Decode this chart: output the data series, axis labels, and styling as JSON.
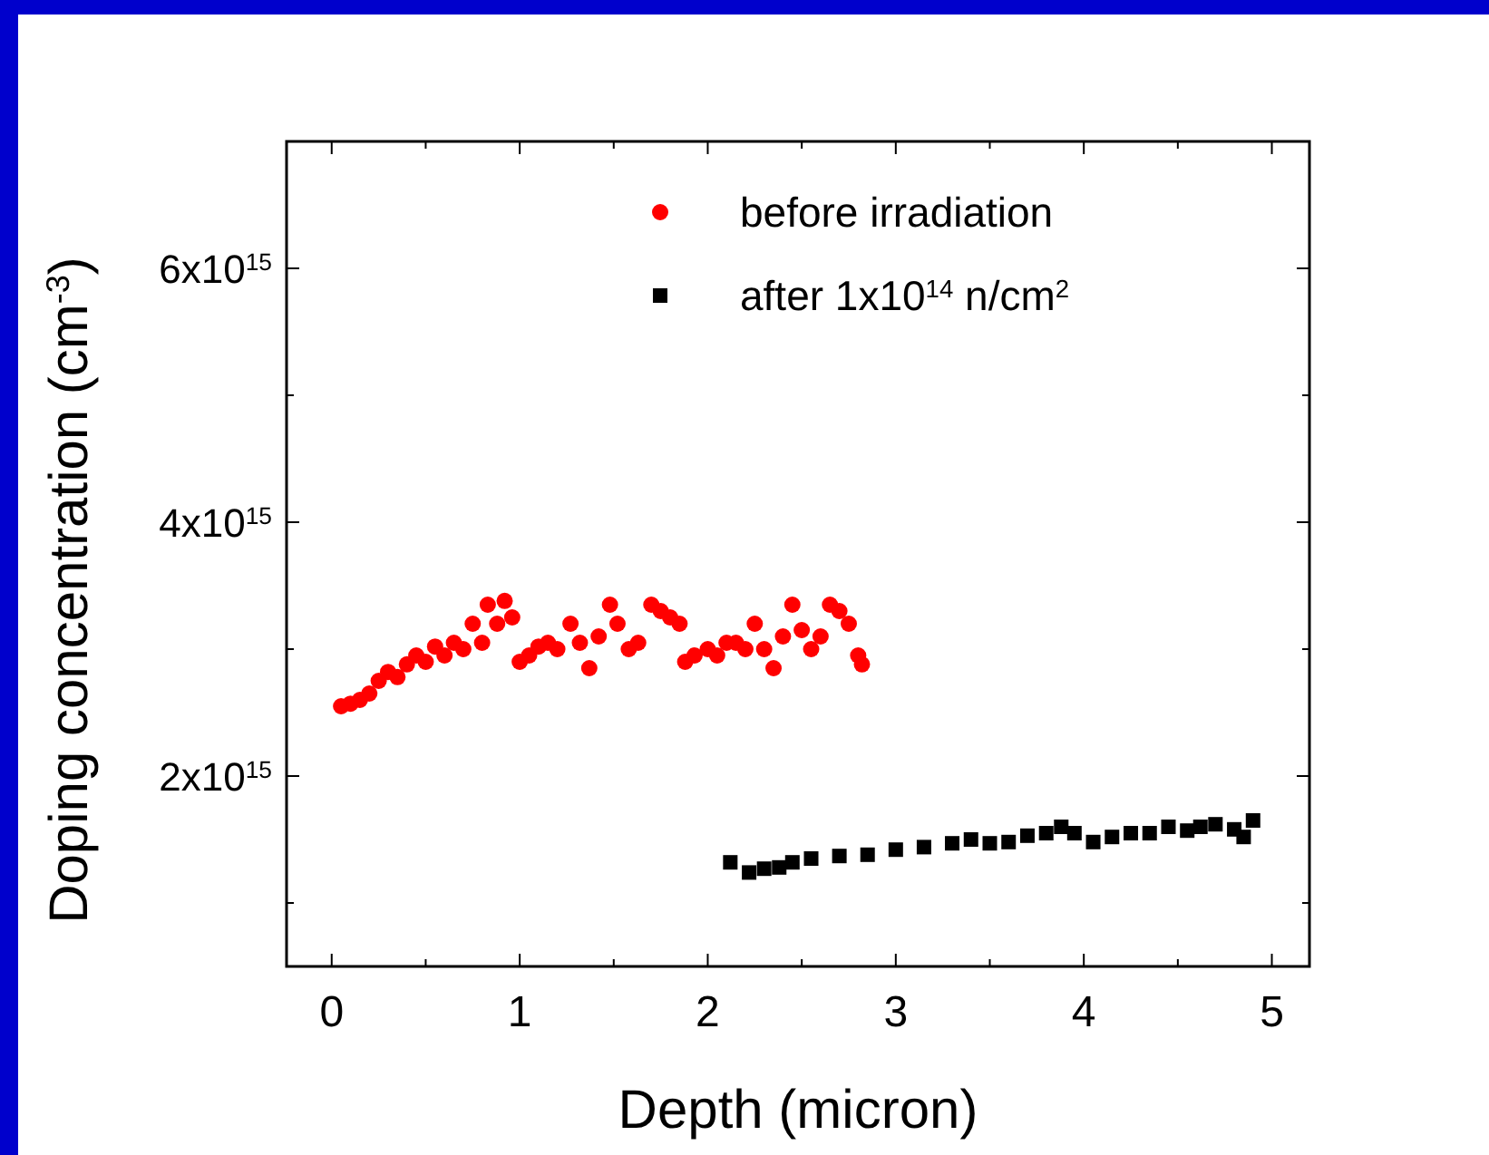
{
  "chart_data": {
    "type": "scatter",
    "xlabel": "Depth (micron)",
    "ylabel": "Doping concentration (cm$^{-3}$)",
    "xlim": [
      -0.24,
      5.2
    ],
    "xticks": [
      0,
      {
        "value": 0.5,
        "label": null
      },
      1,
      {
        "value": 1.5,
        "label": null
      },
      2,
      {
        "value": 2.5,
        "label": null
      },
      3,
      {
        "value": 3.5,
        "label": null
      },
      4,
      {
        "value": 4.5,
        "label": null
      },
      5
    ],
    "ylim": [
      500000000000000.0,
      7000000000000000.0
    ],
    "yticks": [
      {
        "value": 1000000000000000.0,
        "label": null
      },
      {
        "value": 2000000000000000.0,
        "label": "2x10$^{15}$"
      },
      {
        "value": 3000000000000000.0,
        "label": null
      },
      {
        "value": 4000000000000000.0,
        "label": "4x10$^{15}$"
      },
      {
        "value": 5000000000000000.0,
        "label": null
      },
      {
        "value": 6000000000000000.0,
        "label": "6x10$^{15}$"
      }
    ],
    "grid": false,
    "legend": "top right",
    "series": [
      {
        "name": "before irradiation",
        "color": "#ff0000",
        "marker": "circle",
        "x": [
          0.05,
          0.1,
          0.15,
          0.2,
          0.25,
          0.3,
          0.35,
          0.4,
          0.45,
          0.5,
          0.55,
          0.6,
          0.65,
          0.7,
          0.75,
          0.8,
          0.83,
          0.88,
          0.92,
          0.96,
          1.0,
          1.05,
          1.1,
          1.15,
          1.2,
          1.27,
          1.32,
          1.37,
          1.42,
          1.48,
          1.52,
          1.58,
          1.63,
          1.7,
          1.75,
          1.8,
          1.85,
          1.88,
          1.93,
          2.0,
          2.05,
          2.1,
          2.15,
          2.2,
          2.25,
          2.3,
          2.35,
          2.4,
          2.45,
          2.5,
          2.55,
          2.6,
          2.65,
          2.7,
          2.75,
          2.8,
          2.82
        ],
        "values": [
          2550000000000000.0,
          2570000000000000.0,
          2600000000000000.0,
          2650000000000000.0,
          2750000000000000.0,
          2820000000000000.0,
          2780000000000000.0,
          2880000000000000.0,
          2950000000000000.0,
          2900000000000000.0,
          3020000000000000.0,
          2950000000000000.0,
          3050000000000000.0,
          3000000000000000.0,
          3200000000000000.0,
          3050000000000000.0,
          3350000000000000.0,
          3200000000000000.0,
          3380000000000000.0,
          3250000000000000.0,
          2900000000000000.0,
          2950000000000000.0,
          3020000000000000.0,
          3050000000000000.0,
          3000000000000000.0,
          3200000000000000.0,
          3050000000000000.0,
          2850000000000000.0,
          3100000000000000.0,
          3350000000000000.0,
          3200000000000000.0,
          3000000000000000.0,
          3050000000000000.0,
          3350000000000000.0,
          3300000000000000.0,
          3250000000000000.0,
          3200000000000000.0,
          2900000000000000.0,
          2950000000000000.0,
          3000000000000000.0,
          2950000000000000.0,
          3050000000000000.0,
          3050000000000000.0,
          3000000000000000.0,
          3200000000000000.0,
          3000000000000000.0,
          2850000000000000.0,
          3100000000000000.0,
          3350000000000000.0,
          3150000000000000.0,
          3000000000000000.0,
          3100000000000000.0,
          3350000000000000.0,
          3300000000000000.0,
          3200000000000000.0,
          2950000000000000.0,
          2880000000000000.0
        ]
      },
      {
        "name": "after 1x10$^{14}$ n/cm$^{2}$",
        "color": "#000000",
        "marker": "square",
        "x": [
          2.12,
          2.22,
          2.3,
          2.38,
          2.45,
          2.55,
          2.7,
          2.85,
          3.0,
          3.15,
          3.3,
          3.4,
          3.5,
          3.6,
          3.7,
          3.8,
          3.88,
          3.95,
          4.05,
          4.15,
          4.25,
          4.35,
          4.45,
          4.55,
          4.62,
          4.7,
          4.8,
          4.85,
          4.9
        ],
        "values": [
          1320000000000000.0,
          1240000000000000.0,
          1270000000000000.0,
          1280000000000000.0,
          1320000000000000.0,
          1350000000000000.0,
          1370000000000000.0,
          1380000000000000.0,
          1420000000000000.0,
          1440000000000000.0,
          1470000000000000.0,
          1500000000000000.0,
          1470000000000000.0,
          1480000000000000.0,
          1530000000000000.0,
          1550000000000000.0,
          1600000000000000.0,
          1550000000000000.0,
          1480000000000000.0,
          1520000000000000.0,
          1550000000000000.0,
          1550000000000000.0,
          1600000000000000.0,
          1570000000000000.0,
          1600000000000000.0,
          1620000000000000.0,
          1580000000000000.0,
          1520000000000000.0,
          1650000000000000.0
        ]
      }
    ]
  }
}
